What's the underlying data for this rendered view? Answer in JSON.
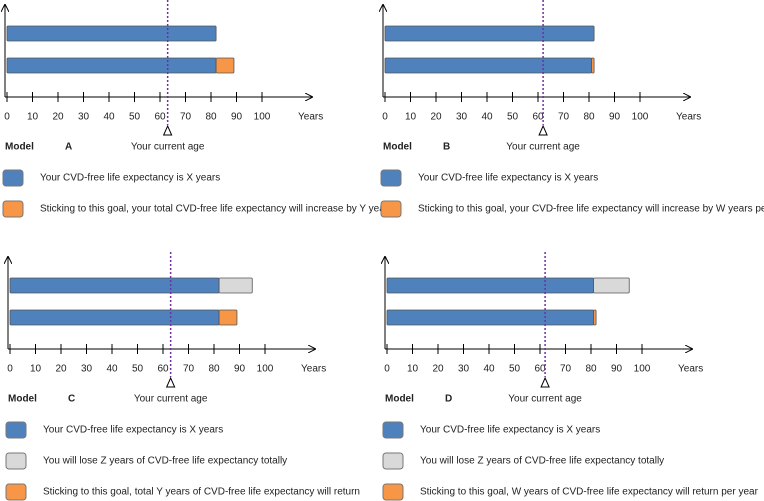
{
  "chart_data": [
    {
      "type": "bar",
      "model_label": "Model",
      "model": "A",
      "xlabel": "Years",
      "annotation": {
        "text": "Your current age",
        "value": 63
      },
      "categories": [
        null,
        null
      ],
      "xlim": [
        0,
        100
      ],
      "xticks": [
        0,
        10,
        20,
        30,
        40,
        50,
        60,
        70,
        80,
        90,
        100
      ],
      "series": [
        {
          "name": "Your CVD-free life expectancy is X years",
          "color": "#4f81bd",
          "values": [
            82,
            82
          ]
        },
        {
          "name": "Sticking to this goal, your total CVD-free life expectancy will increase by Y years",
          "color": "#f79646",
          "values": [
            null,
            7
          ]
        }
      ]
    },
    {
      "type": "bar",
      "model_label": "Model",
      "model": "B",
      "xlabel": "Years",
      "annotation": {
        "text": "Your current age",
        "value": 62
      },
      "categories": [
        null,
        null
      ],
      "xlim": [
        0,
        100
      ],
      "xticks": [
        0,
        10,
        20,
        30,
        40,
        50,
        60,
        70,
        80,
        90,
        100
      ],
      "series": [
        {
          "name": "Your CVD-free life expectancy is X years",
          "color": "#4f81bd",
          "values": [
            82,
            81
          ]
        },
        {
          "name": "Sticking to this goal, your CVD-free life expectancy will increase by W years per year",
          "color": "#f79646",
          "values": [
            null,
            1
          ]
        }
      ]
    },
    {
      "type": "bar",
      "model_label": "Model",
      "model": "C",
      "xlabel": "Years",
      "annotation": {
        "text": "Your current age",
        "value": 63
      },
      "categories": [
        null,
        null
      ],
      "xlim": [
        0,
        100
      ],
      "xticks": [
        0,
        10,
        20,
        30,
        40,
        50,
        60,
        70,
        80,
        90,
        100
      ],
      "series": [
        {
          "name": "Your CVD-free life expectancy is X years",
          "color": "#4f81bd",
          "values": [
            82,
            82
          ]
        },
        {
          "name": "You will lose Z years of CVD-free life expectancy totally",
          "color": "#d9d9d9",
          "values": [
            13,
            null
          ]
        },
        {
          "name": "Sticking to this goal, total Y years of CVD-free life expectancy will return",
          "color": "#f79646",
          "values": [
            null,
            7
          ]
        }
      ]
    },
    {
      "type": "bar",
      "model_label": "Model",
      "model": "D",
      "xlabel": "Years",
      "annotation": {
        "text": "Your current age",
        "value": 62
      },
      "categories": [
        null,
        null
      ],
      "xlim": [
        0,
        100
      ],
      "xticks": [
        0,
        10,
        20,
        30,
        40,
        50,
        60,
        70,
        80,
        90,
        100
      ],
      "series": [
        {
          "name": "Your CVD-free life expectancy is X years",
          "color": "#4f81bd",
          "values": [
            81,
            81
          ]
        },
        {
          "name": "You will lose Z years of CVD-free life expectancy totally",
          "color": "#d9d9d9",
          "values": [
            14,
            null
          ]
        },
        {
          "name": "Sticking to this goal, W years of CVD-free life expectancy will return per year",
          "color": "#f79646",
          "values": [
            null,
            1
          ]
        }
      ]
    }
  ]
}
